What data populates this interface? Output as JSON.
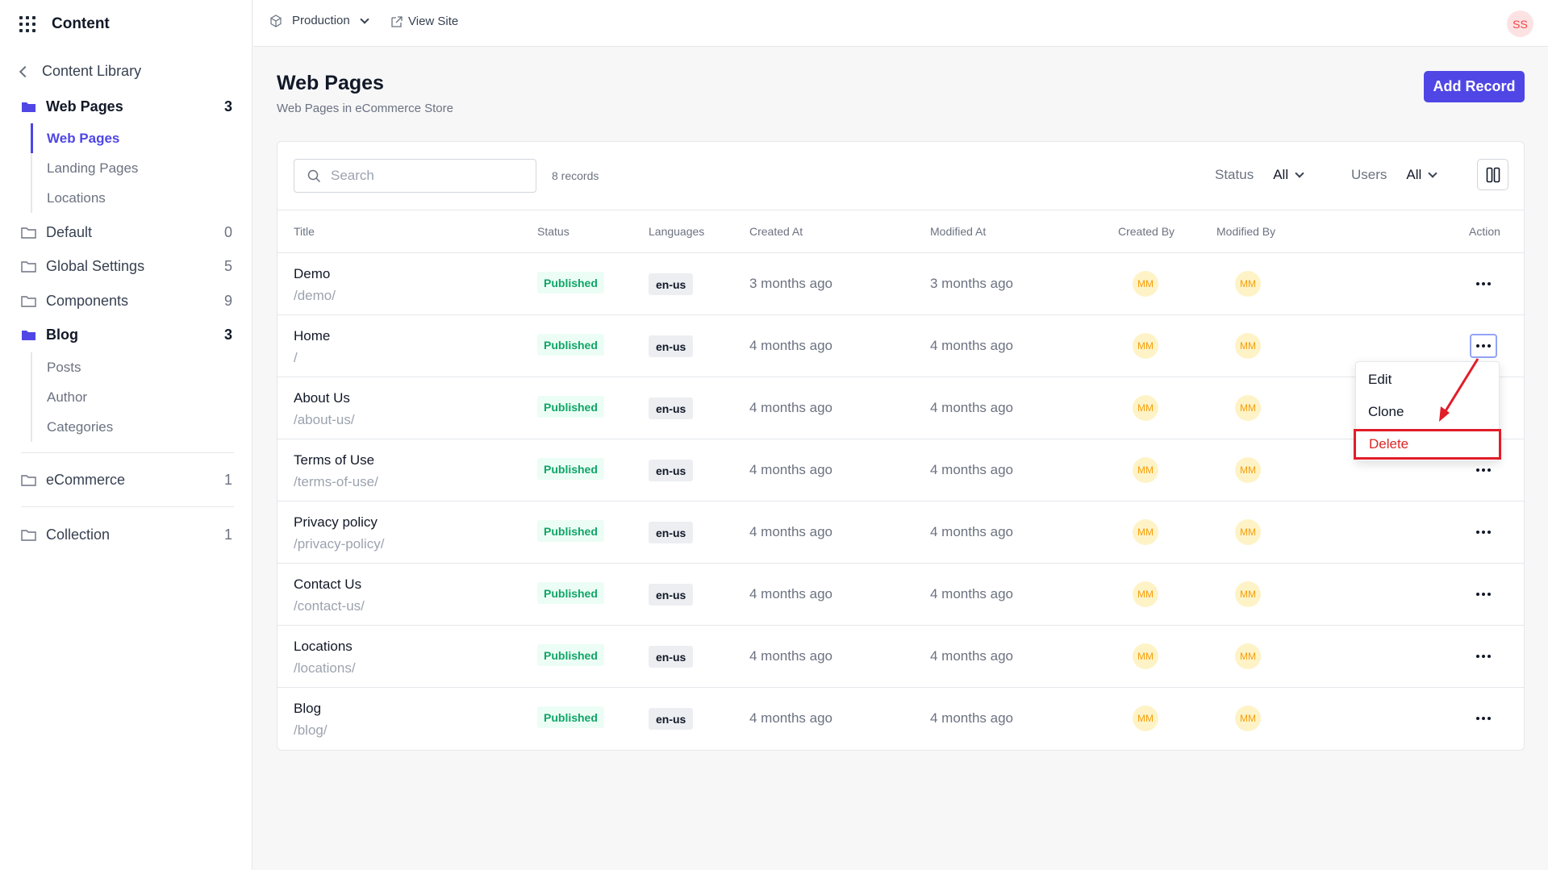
{
  "app": {
    "title": "Content"
  },
  "sidebar": {
    "back_label": "Content Library",
    "groups": [
      {
        "label": "Web Pages",
        "count": "3",
        "subs": [
          "Web Pages",
          "Landing Pages",
          "Locations"
        ]
      },
      {
        "label": "Default",
        "count": "0"
      },
      {
        "label": "Global Settings",
        "count": "5"
      },
      {
        "label": "Components",
        "count": "9"
      },
      {
        "label": "Blog",
        "count": "3",
        "subs": [
          "Posts",
          "Author",
          "Categories"
        ]
      },
      {
        "label": "eCommerce",
        "count": "1"
      },
      {
        "label": "Collection",
        "count": "1"
      }
    ]
  },
  "topbar": {
    "environment": "Production",
    "view_site": "View Site",
    "user_initials": "SS"
  },
  "page": {
    "title": "Web Pages",
    "subtitle": "Web Pages in eCommerce Store",
    "add_button": "Add Record"
  },
  "toolbar": {
    "search_placeholder": "Search",
    "records": "8 records",
    "status_label": "Status",
    "status_value": "All",
    "users_label": "Users",
    "users_value": "All"
  },
  "table": {
    "columns": [
      "Title",
      "Status",
      "Languages",
      "Created At",
      "Modified At",
      "Created By",
      "Modified By",
      "Action"
    ],
    "rows": [
      {
        "title": "Demo",
        "slug": "/demo/",
        "status": "Published",
        "lang": "en-us",
        "created": "3 months ago",
        "modified": "3 months ago",
        "created_by": "MM",
        "modified_by": "MM"
      },
      {
        "title": "Home",
        "slug": "/",
        "status": "Published",
        "lang": "en-us",
        "created": "4 months ago",
        "modified": "4 months ago",
        "created_by": "MM",
        "modified_by": "MM"
      },
      {
        "title": "About Us",
        "slug": "/about-us/",
        "status": "Published",
        "lang": "en-us",
        "created": "4 months ago",
        "modified": "4 months ago",
        "created_by": "MM",
        "modified_by": "MM"
      },
      {
        "title": "Terms of Use",
        "slug": "/terms-of-use/",
        "status": "Published",
        "lang": "en-us",
        "created": "4 months ago",
        "modified": "4 months ago",
        "created_by": "MM",
        "modified_by": "MM"
      },
      {
        "title": "Privacy policy",
        "slug": "/privacy-policy/",
        "status": "Published",
        "lang": "en-us",
        "created": "4 months ago",
        "modified": "4 months ago",
        "created_by": "MM",
        "modified_by": "MM"
      },
      {
        "title": "Contact Us",
        "slug": "/contact-us/",
        "status": "Published",
        "lang": "en-us",
        "created": "4 months ago",
        "modified": "4 months ago",
        "created_by": "MM",
        "modified_by": "MM"
      },
      {
        "title": "Locations",
        "slug": "/locations/",
        "status": "Published",
        "lang": "en-us",
        "created": "4 months ago",
        "modified": "4 months ago",
        "created_by": "MM",
        "modified_by": "MM"
      },
      {
        "title": "Blog",
        "slug": "/blog/",
        "status": "Published",
        "lang": "en-us",
        "created": "4 months ago",
        "modified": "4 months ago",
        "created_by": "MM",
        "modified_by": "MM"
      }
    ]
  },
  "action_menu": {
    "items": [
      "Edit",
      "Clone",
      "Delete"
    ]
  },
  "colors": {
    "accent": "#4f46e5",
    "published": "#10a567",
    "danger": "#dc2626",
    "avatar": "#f59e0b"
  },
  "icons": {
    "apps": "grid-icon",
    "back": "chevron-left-icon",
    "folder": "folder-icon",
    "environment": "cube-icon",
    "external": "external-link-icon",
    "search": "search-icon",
    "columns": "columns-icon",
    "more": "more-horizontal-icon"
  }
}
